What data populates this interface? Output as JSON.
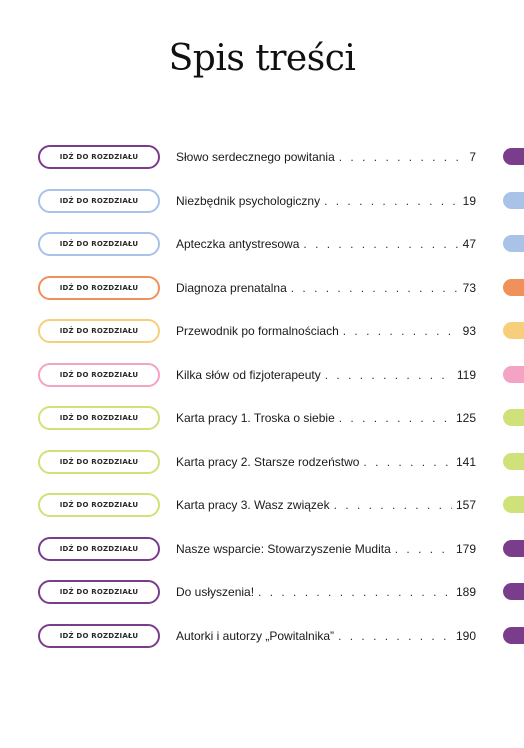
{
  "page_title": "Spis treści",
  "button_label": "IDŹ DO ROZDZIAŁU",
  "entries": [
    {
      "title": "Słowo serdecznego powitania",
      "page": "7",
      "color": "#7a3d8c"
    },
    {
      "title": "Niezbędnik psychologiczny",
      "page": "19",
      "color": "#a9c2e8"
    },
    {
      "title": "Apteczka antystresowa",
      "page": "47",
      "color": "#a9c2e8"
    },
    {
      "title": "Diagnoza prenatalna",
      "page": "73",
      "color": "#f0905a"
    },
    {
      "title": "Przewodnik po formalnościach",
      "page": "93",
      "color": "#f7cf7a"
    },
    {
      "title": "Kilka słów od fizjoterapeuty",
      "page": "119",
      "color": "#f4a3c4"
    },
    {
      "title": "Karta pracy 1. Troska o siebie",
      "page": "125",
      "color": "#cfe27a"
    },
    {
      "title": "Karta pracy 2. Starsze rodzeństwo",
      "page": "141",
      "color": "#cfe27a"
    },
    {
      "title": "Karta pracy 3. Wasz związek",
      "page": "157",
      "color": "#cfe27a"
    },
    {
      "title": "Nasze wsparcie: Stowarzyszenie Mudita",
      "page": "179",
      "color": "#7a3d8c"
    },
    {
      "title": "Do usłyszenia!",
      "page": "189",
      "color": "#7a3d8c"
    },
    {
      "title": "Autorki i autorzy „Powitalnika”",
      "page": "190",
      "color": "#7a3d8c"
    }
  ]
}
